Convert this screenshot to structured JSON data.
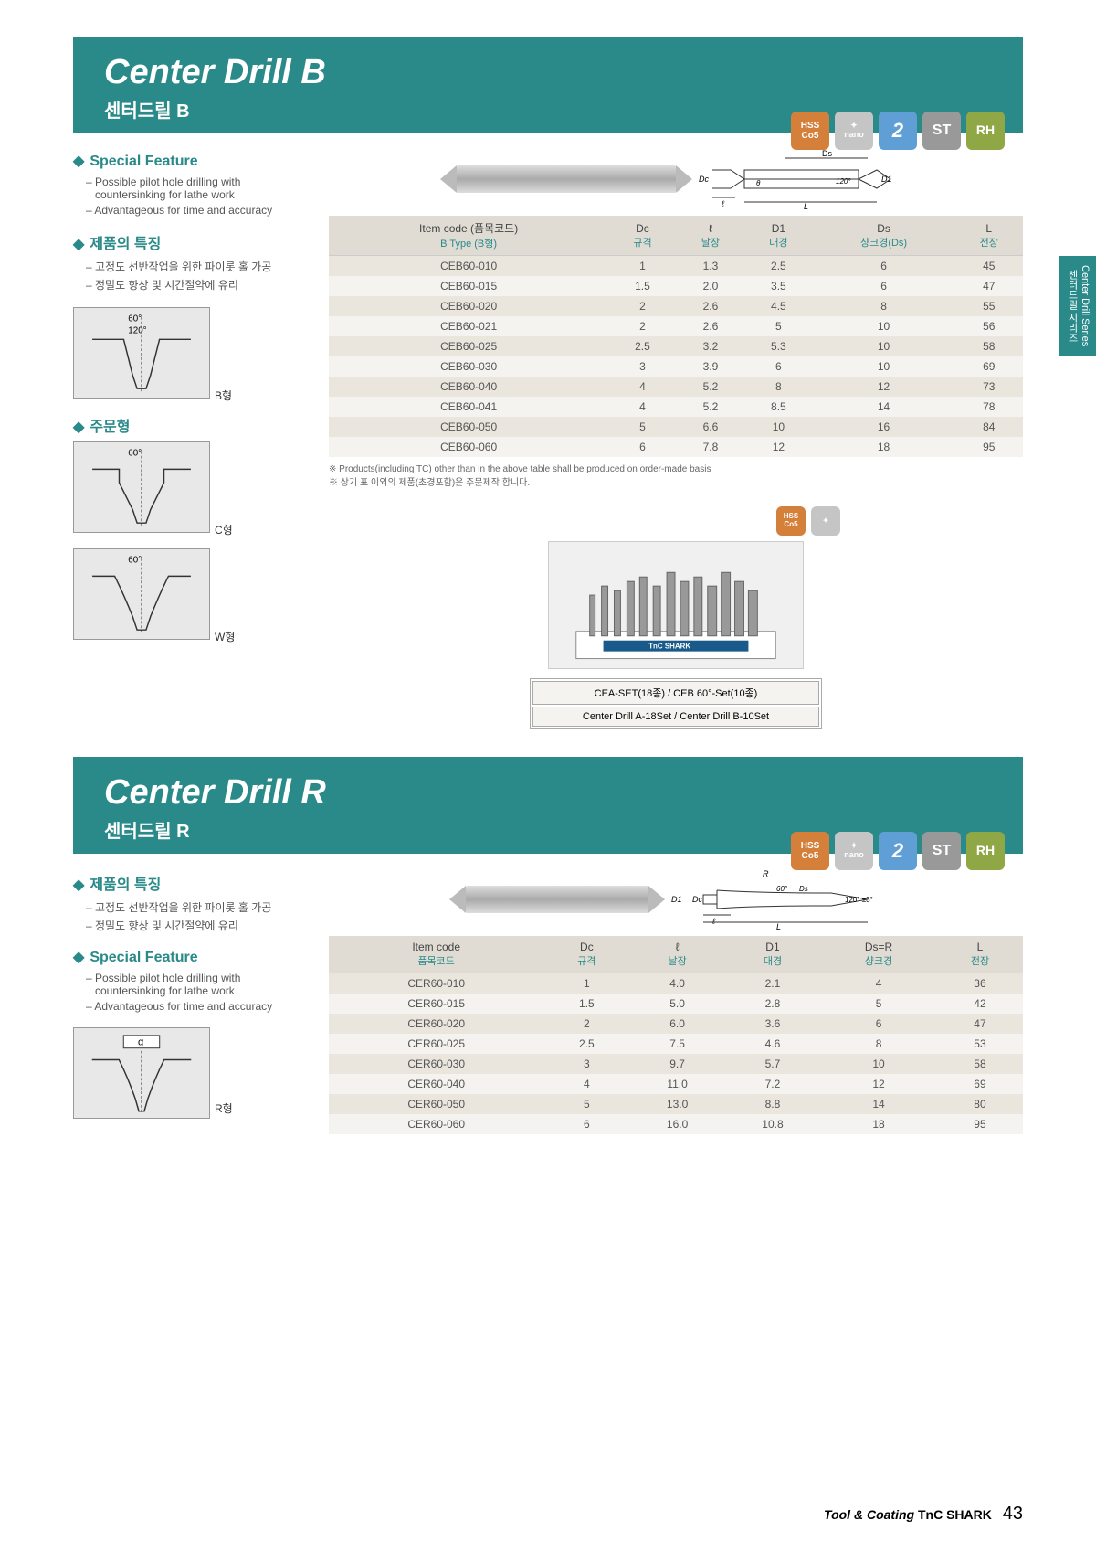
{
  "side_tab": {
    "en": "Center Drill Series",
    "ko": "센터드릴 시리즈"
  },
  "section_b": {
    "title_en": "Center Drill B",
    "title_ko": "센터드릴 B",
    "badges": [
      "HSS\nCo5",
      "nano",
      "2",
      "ST",
      "RH"
    ],
    "feature_title": "Special Feature",
    "features": [
      "– Possible pilot hole drilling with countersinking for lathe work",
      "– Advantageous for time and accuracy"
    ],
    "feature_ko_title": "제품의 특징",
    "features_ko": [
      "– 고정도 선반작업을 위한 파이롯 홀 가공",
      "– 정밀도 향상 및 시간절약에 유리"
    ],
    "order_title": "주문형",
    "diagram_angles": {
      "top": "60°",
      "mid": "120°"
    },
    "diagram_labels": {
      "b": "B형",
      "c": "C형",
      "w": "W형"
    },
    "table_headers": [
      {
        "main": "Item code (품목코드)",
        "sub": "B Type (B형)"
      },
      {
        "main": "Dc",
        "sub": "규격"
      },
      {
        "main": "ℓ",
        "sub": "날장"
      },
      {
        "main": "D1",
        "sub": "대경"
      },
      {
        "main": "Ds",
        "sub": "샹크경(Ds)"
      },
      {
        "main": "L",
        "sub": "전장"
      }
    ],
    "rows": [
      [
        "CEB60-010",
        "1",
        "1.3",
        "2.5",
        "6",
        "45"
      ],
      [
        "CEB60-015",
        "1.5",
        "2.0",
        "3.5",
        "6",
        "47"
      ],
      [
        "CEB60-020",
        "2",
        "2.6",
        "4.5",
        "8",
        "55"
      ],
      [
        "CEB60-021",
        "2",
        "2.6",
        "5",
        "10",
        "56"
      ],
      [
        "CEB60-025",
        "2.5",
        "3.2",
        "5.3",
        "10",
        "58"
      ],
      [
        "CEB60-030",
        "3",
        "3.9",
        "6",
        "10",
        "69"
      ],
      [
        "CEB60-040",
        "4",
        "5.2",
        "8",
        "12",
        "73"
      ],
      [
        "CEB60-041",
        "4",
        "5.2",
        "8.5",
        "14",
        "78"
      ],
      [
        "CEB60-050",
        "5",
        "6.6",
        "10",
        "16",
        "84"
      ],
      [
        "CEB60-060",
        "6",
        "7.8",
        "12",
        "18",
        "95"
      ]
    ],
    "notes": [
      "※ Products(including TC) other than in the above table shall be produced on order-made basis",
      "※ 상기 표 이외의 제품(초경포함)은 주문제작 합니다."
    ],
    "set": {
      "row1": "CEA-SET(18종) / CEB 60°-Set(10종)",
      "row2": "Center Drill A-18Set / Center Drill B-10Set"
    },
    "tech_labels": {
      "dc": "Dc",
      "ds": "Ds",
      "d1": "D1",
      "l": "L",
      "ell": "ℓ",
      "angle": "120°",
      "theta": "θ"
    }
  },
  "section_r": {
    "title_en": "Center Drill R",
    "title_ko": "센터드릴 R",
    "badges": [
      "HSS\nCo5",
      "nano",
      "2",
      "ST",
      "RH"
    ],
    "feature_ko_title": "제품의 특징",
    "features_ko": [
      "– 고정도 선반작업을 위한 파이롯 홀 가공",
      "– 정밀도 향상 및 시간절약에 유리"
    ],
    "feature_title": "Special Feature",
    "features": [
      "– Possible pilot hole drilling with countersinking for lathe work",
      "– Advantageous for time and accuracy"
    ],
    "diagram_label": "R형",
    "alpha": "α",
    "table_headers": [
      {
        "main": "Item code",
        "sub": "품목코드"
      },
      {
        "main": "Dc",
        "sub": "규격"
      },
      {
        "main": "ℓ",
        "sub": "날장"
      },
      {
        "main": "D1",
        "sub": "대경"
      },
      {
        "main": "Ds=R",
        "sub": "샹크경"
      },
      {
        "main": "L",
        "sub": "전장"
      }
    ],
    "rows": [
      [
        "CER60-010",
        "1",
        "4.0",
        "2.1",
        "4",
        "36"
      ],
      [
        "CER60-015",
        "1.5",
        "5.0",
        "2.8",
        "5",
        "42"
      ],
      [
        "CER60-020",
        "2",
        "6.0",
        "3.6",
        "6",
        "47"
      ],
      [
        "CER60-025",
        "2.5",
        "7.5",
        "4.6",
        "8",
        "53"
      ],
      [
        "CER60-030",
        "3",
        "9.7",
        "5.7",
        "10",
        "58"
      ],
      [
        "CER60-040",
        "4",
        "11.0",
        "7.2",
        "12",
        "69"
      ],
      [
        "CER60-050",
        "5",
        "13.0",
        "8.8",
        "14",
        "80"
      ],
      [
        "CER60-060",
        "6",
        "16.0",
        "10.8",
        "18",
        "95"
      ]
    ],
    "tech_labels": {
      "dc": "Dc",
      "ds": "Ds",
      "d1": "D1",
      "l": "L",
      "ell": "ℓ",
      "r": "R",
      "angle60": "60°",
      "angle": "120° ±3°"
    }
  },
  "footer": {
    "tool": "Tool & Coating",
    "brand": "TnC SHARK",
    "page": "43"
  },
  "colors": {
    "teal": "#2a8a8a",
    "header_bg": "#e0dcd4",
    "row_odd": "#eae6de",
    "row_even": "#f5f3ef"
  }
}
